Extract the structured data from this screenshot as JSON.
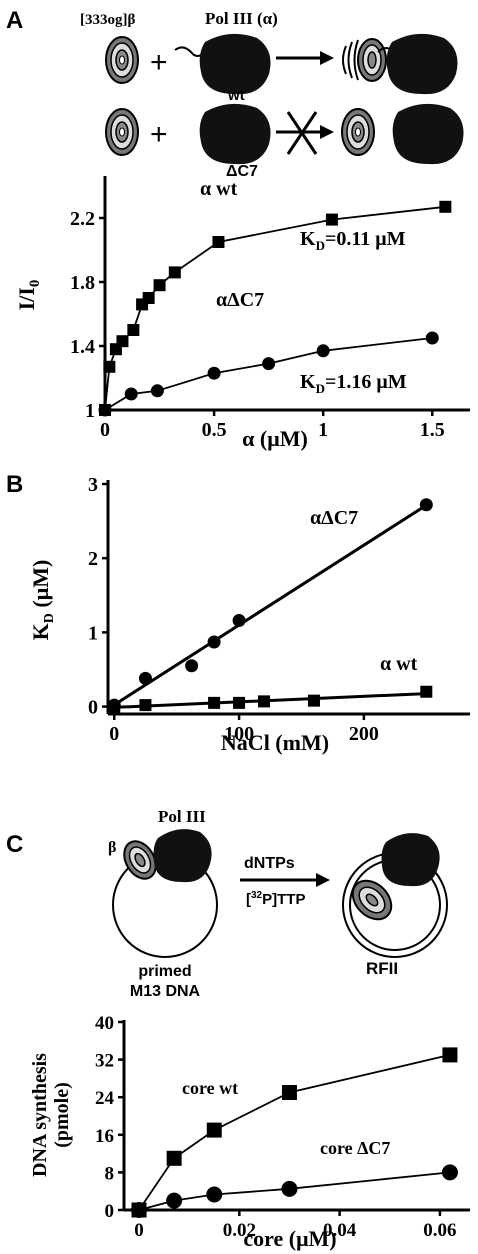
{
  "panels": {
    "A": {
      "letter": "A",
      "schematic": {
        "beta_label": "[333og]β",
        "pol_label": "Pol III (α)",
        "wt_label": "wt",
        "mutant_label": "ΔC7",
        "plus": "+"
      }
    },
    "B": {
      "letter": "B"
    },
    "C": {
      "letter": "C",
      "schematic": {
        "pol_label": "Pol III",
        "beta_label": "β",
        "reagent_top": "dNTPs",
        "reagent_bottom": "[32P]TTP",
        "reagent_bottom_pre": "[",
        "reagent_bottom_sup": "32",
        "reagent_bottom_post": "P]TTP",
        "substrate_line1": "primed",
        "substrate_line2": "M13 DNA",
        "product": "RFII"
      }
    }
  },
  "chart_data": [
    {
      "panel": "A",
      "type": "scatter",
      "xlabel": "α (μM)",
      "ylabel": "I/I0",
      "xlim": [
        0,
        1.65
      ],
      "ylim": [
        1,
        2.4
      ],
      "xticks": [
        "0",
        "0.5",
        "1",
        "1.5"
      ],
      "xtick_values": [
        0,
        0.5,
        1,
        1.5
      ],
      "yticks": [
        "1",
        "1.4",
        "1.8",
        "2.2"
      ],
      "ytick_values": [
        1,
        1.4,
        1.8,
        2.2
      ],
      "series": [
        {
          "name": "α wt",
          "marker": "square",
          "x": [
            0,
            0.02,
            0.05,
            0.08,
            0.13,
            0.17,
            0.2,
            0.25,
            0.32,
            0.52,
            1.04,
            1.56
          ],
          "y": [
            1,
            1.27,
            1.38,
            1.43,
            1.5,
            1.66,
            1.7,
            1.78,
            1.86,
            2.05,
            2.19,
            2.27
          ],
          "annotation": "KD=0.11 μM"
        },
        {
          "name": "αΔC7",
          "marker": "circle",
          "x": [
            0,
            0.12,
            0.24,
            0.5,
            0.75,
            1.0,
            1.5
          ],
          "y": [
            1,
            1.1,
            1.12,
            1.23,
            1.29,
            1.37,
            1.45
          ],
          "annotation": "KD=1.16 μM"
        }
      ],
      "annotations": {
        "wt_pre": "α wt",
        "mut_pre": "αΔC7",
        "kd1_k": "K",
        "kd1_sub": "D",
        "kd1_val": "=0.11 μM",
        "kd2_k": "K",
        "kd2_sub": "D",
        "kd2_val": "=1.16 μM"
      }
    },
    {
      "panel": "B",
      "type": "scatter",
      "xlabel": "NaCl (mM)",
      "ylabel": "KD (μM)",
      "xlim": [
        -5,
        285
      ],
      "ylim": [
        -0.1,
        3
      ],
      "xticks": [
        "0",
        "100",
        "200"
      ],
      "xtick_values": [
        0,
        100,
        200
      ],
      "yticks": [
        "0",
        "1",
        "2",
        "3"
      ],
      "ytick_values": [
        0,
        1,
        2,
        3
      ],
      "series": [
        {
          "name": "αΔC7",
          "marker": "circle",
          "x": [
            0,
            25,
            62,
            80,
            100,
            250
          ],
          "y": [
            0.02,
            0.38,
            0.55,
            0.87,
            1.16,
            2.72
          ]
        },
        {
          "name": "α wt",
          "marker": "square",
          "x": [
            0,
            25,
            80,
            100,
            120,
            160,
            250
          ],
          "y": [
            0,
            0.02,
            0.05,
            0.05,
            0.07,
            0.08,
            0.2
          ]
        }
      ],
      "annotations": {
        "ylabel_k": "K",
        "ylabel_sub": "D",
        "ylabel_rest": " (μM)"
      }
    },
    {
      "panel": "C",
      "type": "line",
      "xlabel": "core (μM)",
      "ylabel": "DNA synthesis (pmole)",
      "ylabel_line1": "DNA synthesis",
      "ylabel_line2": "(pmole)",
      "xlim": [
        -0.003,
        0.066
      ],
      "ylim": [
        0,
        40
      ],
      "xticks": [
        "0",
        "0.02",
        "0.04",
        "0.06"
      ],
      "xtick_values": [
        0,
        0.02,
        0.04,
        0.06
      ],
      "yticks": [
        "0",
        "8",
        "16",
        "24",
        "32",
        "40"
      ],
      "ytick_values": [
        0,
        8,
        16,
        24,
        32,
        40
      ],
      "series": [
        {
          "name": "core wt",
          "marker": "square",
          "x": [
            0,
            0.007,
            0.015,
            0.03,
            0.062
          ],
          "y": [
            0,
            11,
            17,
            25,
            33
          ]
        },
        {
          "name": "core ΔC7",
          "marker": "circle",
          "x": [
            0,
            0.007,
            0.015,
            0.03,
            0.062
          ],
          "y": [
            0,
            2,
            3.3,
            4.5,
            8
          ]
        }
      ]
    }
  ]
}
